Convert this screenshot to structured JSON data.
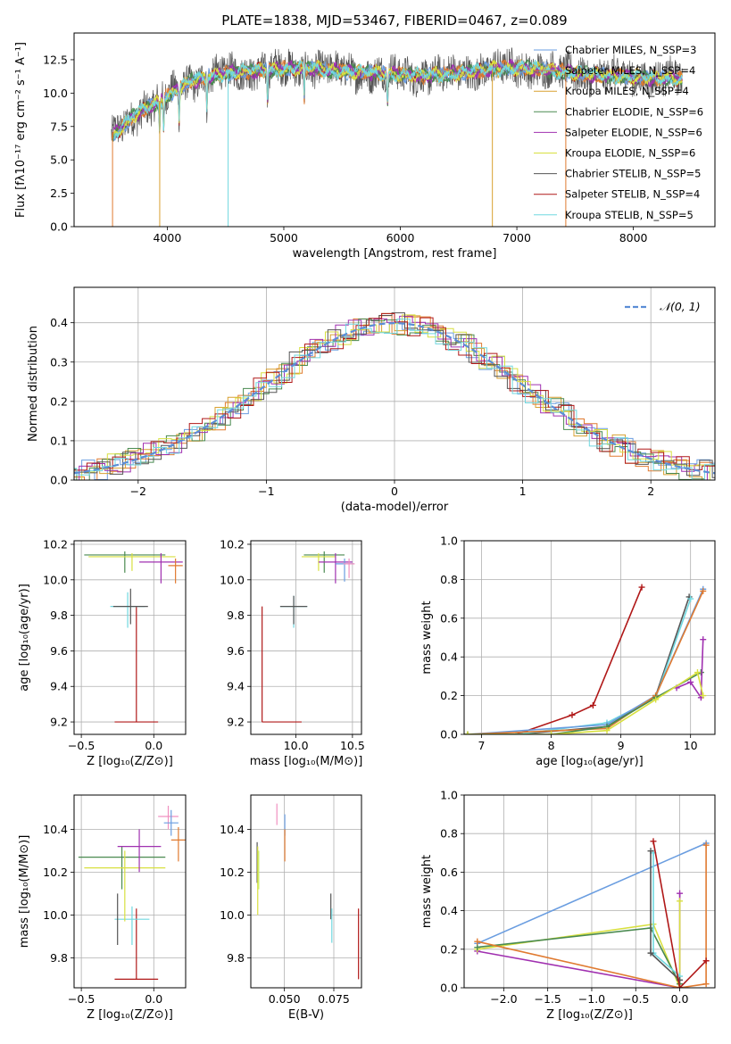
{
  "colors": {
    "chabrier_miles": "#6a9de0",
    "salpeter_miles": "#e07a30",
    "kroupa_miles": "#d8a030",
    "chabrier_elodie": "#4a8a50",
    "salpeter_elodie": "#a030b0",
    "kroupa_elodie": "#d8e040",
    "chabrier_stelib": "#555555",
    "salpeter_stelib": "#b01818",
    "kroupa_stelib": "#70d8e0",
    "grid": "#b0b0b0",
    "gaussian": "#5b8dd6",
    "pink": "#f090c0",
    "lime": "#c8f060"
  },
  "chart_data": [
    {
      "id": "spectrum",
      "type": "line",
      "title": "PLATE=1838, MJD=53467, FIBERID=0467, z=0.089",
      "xlabel": "wavelength [Angstrom, rest frame]",
      "ylabel": "Flux [fλ10⁻¹⁷ erg cm⁻² s⁻¹ A⁻¹]",
      "xlim": [
        3200,
        8700
      ],
      "ylim": [
        0,
        14.5
      ],
      "xticks": [
        "4000",
        "5000",
        "6000",
        "7000",
        "8000"
      ],
      "yticks": [
        "0.0",
        "2.5",
        "5.0",
        "7.5",
        "10.0",
        "12.5"
      ],
      "legend_position": "right",
      "legend": [
        "Chabrier MILES, N_SSP=3",
        "Salpeter MILES, N_SSP=4",
        "Kroupa MILES, N_SSP=4",
        "Chabrier ELODIE, N_SSP=6",
        "Salpeter ELODIE, N_SSP=6",
        "Kroupa ELODIE, N_SSP=6",
        "Chabrier STELIB, N_SSP=5",
        "Salpeter STELIB, N_SSP=4",
        "Kroupa STELIB, N_SSP=5"
      ],
      "continuum": {
        "x": [
          3500,
          3600,
          3700,
          3800,
          3900,
          4000,
          4100,
          4200,
          4400,
          4600,
          4800,
          5000,
          5200,
          5400,
          5600,
          5800,
          6000,
          6200,
          6400,
          6600,
          6800,
          7000,
          7200,
          7400,
          7600,
          7800,
          8000,
          8200,
          8400
        ],
        "y": [
          6.5,
          7.4,
          8.2,
          8.8,
          9.2,
          9.8,
          10.4,
          10.9,
          11.3,
          11.6,
          11.7,
          11.8,
          11.9,
          11.7,
          11.6,
          11.5,
          11.4,
          11.3,
          11.4,
          11.6,
          11.8,
          11.9,
          11.8,
          11.6,
          11.4,
          11.3,
          11.2,
          11.1,
          11.1
        ]
      }
    },
    {
      "id": "residuals",
      "type": "line",
      "xlabel": "(data-model)/error",
      "ylabel": "Normed distribution",
      "xlim": [
        -2.5,
        2.5
      ],
      "ylim": [
        0,
        0.49
      ],
      "xticks": [
        "−2",
        "−1",
        "0",
        "1",
        "2"
      ],
      "yticks": [
        "0.0",
        "0.1",
        "0.2",
        "0.3",
        "0.4"
      ],
      "legend": [
        "𝒩(0, 1)"
      ],
      "legend_position": "top-right",
      "series_name": "N(0,1)",
      "mu": 0,
      "sigma": 1
    },
    {
      "id": "age_vs_z",
      "type": "scatter",
      "xlabel": "Z [log₁₀(Z/Z⊙)]",
      "ylabel": "age  [log₁₀(age/yr)]",
      "xlim": [
        -0.55,
        0.22
      ],
      "ylim": [
        9.13,
        10.22
      ],
      "xticks": [
        "−0.5",
        "0.0"
      ],
      "yticks": [
        "9.2",
        "9.4",
        "9.6",
        "9.8",
        "10.0",
        "10.2"
      ],
      "points": [
        {
          "c": "salpeter_stelib",
          "x": -0.12,
          "xerr": 0.15,
          "y": 9.2,
          "yerr": [
            0,
            0.65
          ]
        },
        {
          "c": "kroupa_stelib",
          "x": -0.18,
          "xerr": 0.12,
          "y": 9.85,
          "yerr": [
            0.12,
            0.08
          ]
        },
        {
          "c": "chabrier_stelib",
          "x": -0.16,
          "xerr": 0.12,
          "y": 9.85,
          "yerr": [
            0.1,
            0.1
          ]
        },
        {
          "c": "chabrier_elodie",
          "x": -0.2,
          "xerr": 0.28,
          "y": 10.14,
          "yerr": [
            0.1,
            0.02
          ]
        },
        {
          "c": "kroupa_elodie",
          "x": -0.15,
          "xerr": 0.3,
          "y": 10.13,
          "yerr": [
            0.08,
            0.02
          ]
        },
        {
          "c": "salpeter_elodie",
          "x": 0.05,
          "xerr": 0.15,
          "y": 10.1,
          "yerr": [
            0.12,
            0.05
          ]
        },
        {
          "c": "salpeter_miles",
          "x": 0.15,
          "xerr": 0.05,
          "y": 10.08,
          "yerr": [
            0.1,
            0.04
          ]
        }
      ]
    },
    {
      "id": "age_vs_mass",
      "type": "scatter",
      "xlabel": "mass [log₁₀(M/M⊙)]",
      "xlim": [
        9.6,
        10.58
      ],
      "ylim": [
        9.13,
        10.22
      ],
      "xticks": [
        "10.0",
        "10.5"
      ],
      "yticks": [
        "9.2",
        "9.4",
        "9.6",
        "9.8",
        "10.0",
        "10.2"
      ],
      "points": [
        {
          "c": "salpeter_stelib",
          "x": 9.7,
          "xerr": 0.0,
          "y": 9.85,
          "yerr": [
            0.65,
            0
          ],
          "x2": [
            9.7,
            10.05
          ],
          "y2": 9.2
        },
        {
          "c": "kroupa_stelib",
          "x": 9.98,
          "xerr": 0.12,
          "y": 9.85,
          "yerr": [
            0.12,
            0.06
          ]
        },
        {
          "c": "chabrier_stelib",
          "x": 9.98,
          "xerr": 0.12,
          "y": 9.85,
          "yerr": [
            0.1,
            0.06
          ]
        },
        {
          "c": "chabrier_elodie",
          "x": 10.25,
          "xerr": 0.18,
          "y": 10.14,
          "yerr": [
            0.1,
            0.02
          ]
        },
        {
          "c": "kroupa_elodie",
          "x": 10.2,
          "xerr": 0.15,
          "y": 10.13,
          "yerr": [
            0.08,
            0.02
          ]
        },
        {
          "c": "salpeter_elodie",
          "x": 10.35,
          "xerr": 0.15,
          "y": 10.1,
          "yerr": [
            0.12,
            0.05
          ]
        },
        {
          "c": "chabrier_miles",
          "x": 10.43,
          "xerr": 0.08,
          "y": 10.09,
          "yerr": [
            0.1,
            0.03
          ]
        },
        {
          "c": "pink",
          "x": 10.47,
          "xerr": 0.05,
          "y": 10.09,
          "yerr": [
            0.08,
            0.03
          ]
        }
      ]
    },
    {
      "id": "weight_vs_age",
      "type": "line",
      "xlabel": "age  [log₁₀(age/yr)]",
      "ylabel": "mass weight",
      "xlim": [
        6.75,
        10.35
      ],
      "ylim": [
        0,
        1.0
      ],
      "xticks": [
        "7",
        "8",
        "9",
        "10"
      ],
      "yticks": [
        "0.0",
        "0.2",
        "0.4",
        "0.6",
        "0.8",
        "1.0"
      ],
      "series": [
        {
          "c": "salpeter_stelib",
          "x": [
            7.5,
            8.3,
            8.6,
            9.3
          ],
          "y": [
            0.0,
            0.1,
            0.15,
            0.76
          ]
        },
        {
          "c": "chabrier_stelib",
          "x": [
            6.8,
            7.5,
            8.8,
            9.5,
            9.98
          ],
          "y": [
            0.0,
            0.0,
            0.04,
            0.2,
            0.71
          ]
        },
        {
          "c": "kroupa_stelib",
          "x": [
            6.8,
            7.5,
            8.8,
            9.5,
            10.0
          ],
          "y": [
            0.0,
            0.0,
            0.06,
            0.19,
            0.7
          ]
        },
        {
          "c": "chabrier_miles",
          "x": [
            6.8,
            8.8,
            9.5,
            10.18
          ],
          "y": [
            0.0,
            0.05,
            0.2,
            0.75
          ]
        },
        {
          "c": "salpeter_miles",
          "x": [
            6.8,
            8.8,
            9.5,
            10.18
          ],
          "y": [
            0.0,
            0.03,
            0.2,
            0.74
          ]
        },
        {
          "c": "chabrier_elodie",
          "x": [
            6.8,
            8.0,
            8.8,
            9.5,
            10.15
          ],
          "y": [
            0.0,
            0.0,
            0.04,
            0.19,
            0.32
          ]
        },
        {
          "c": "salpeter_elodie",
          "x": [
            9.8,
            10.0,
            10.15,
            10.18
          ],
          "y": [
            0.24,
            0.27,
            0.19,
            0.49
          ]
        },
        {
          "c": "kroupa_elodie",
          "x": [
            6.8,
            8.0,
            8.8,
            9.5,
            10.1,
            10.18
          ],
          "y": [
            0.0,
            0.0,
            0.02,
            0.18,
            0.32,
            0.2
          ]
        }
      ]
    },
    {
      "id": "mass_vs_z",
      "type": "scatter",
      "xlabel": "Z [log₁₀(Z/Z⊙)]",
      "ylabel": "mass [log₁₀(M/M⊙)]",
      "xlim": [
        -0.55,
        0.22
      ],
      "ylim": [
        9.66,
        10.56
      ],
      "xticks": [
        "−0.5",
        "0.0"
      ],
      "yticks": [
        "9.8",
        "10.0",
        "10.2",
        "10.4"
      ],
      "points": [
        {
          "c": "salpeter_stelib",
          "x": -0.12,
          "xerr": 0.15,
          "y": 9.7,
          "yerr": [
            0,
            0.33
          ]
        },
        {
          "c": "kroupa_stelib",
          "x": -0.15,
          "xerr": 0.12,
          "y": 9.98,
          "yerr": [
            0.12,
            0.06
          ]
        },
        {
          "c": "chabrier_stelib",
          "x": -0.25,
          "xerr": 0.0,
          "y": 9.98,
          "yerr": [
            0.12,
            0.12
          ]
        },
        {
          "c": "chabrier_elodie",
          "x": -0.22,
          "xerr": 0.3,
          "y": 10.27,
          "yerr": [
            0.15,
            0.05
          ]
        },
        {
          "c": "kroupa_elodie",
          "x": -0.2,
          "xerr": 0.28,
          "y": 10.22,
          "yerr": [
            0.25,
            0.08
          ]
        },
        {
          "c": "salpeter_elodie",
          "x": -0.1,
          "xerr": 0.15,
          "y": 10.32,
          "yerr": [
            0.12,
            0.08
          ]
        },
        {
          "c": "pink",
          "x": 0.1,
          "xerr": 0.07,
          "y": 10.46,
          "yerr": [
            0.06,
            0.05
          ]
        },
        {
          "c": "chabrier_miles",
          "x": 0.12,
          "xerr": 0.05,
          "y": 10.43,
          "yerr": [
            0.06,
            0.06
          ]
        },
        {
          "c": "salpeter_miles",
          "x": 0.17,
          "xerr": 0.05,
          "y": 10.35,
          "yerr": [
            0.1,
            0.06
          ]
        }
      ]
    },
    {
      "id": "mass_vs_ebv",
      "type": "scatter",
      "xlabel": "E(B-V)",
      "xlim": [
        0.033,
        0.089
      ],
      "ylim": [
        9.66,
        10.56
      ],
      "xticks": [
        "0.050",
        "0.075"
      ],
      "yticks": [
        "9.8",
        "10.0",
        "10.2",
        "10.4"
      ],
      "points": [
        {
          "c": "chabrier_stelib",
          "x": 0.0362,
          "y": 10.25,
          "yerr": [
            0.1,
            0.09
          ]
        },
        {
          "c": "kroupa_elodie",
          "x": 0.0365,
          "y": 10.1,
          "yerr": [
            0.1,
            0.22
          ]
        },
        {
          "c": "lime",
          "x": 0.037,
          "y": 10.2,
          "yerr": [
            0.08,
            0.1
          ]
        },
        {
          "c": "pink",
          "x": 0.0462,
          "y": 10.47,
          "yerr": [
            0.05,
            0.05
          ]
        },
        {
          "c": "chabrier_miles",
          "x": 0.0502,
          "y": 10.42,
          "yerr": [
            0.05,
            0.05
          ]
        },
        {
          "c": "salpeter_miles",
          "x": 0.0502,
          "y": 10.32,
          "yerr": [
            0.07,
            0.08
          ]
        },
        {
          "c": "chabrier_stelib",
          "x": 0.0735,
          "y": 10.05,
          "yerr": [
            0.07,
            0.05
          ]
        },
        {
          "c": "kroupa_stelib",
          "x": 0.074,
          "y": 9.95,
          "yerr": [
            0.08,
            0.08
          ]
        },
        {
          "c": "salpeter_stelib",
          "x": 0.0875,
          "y": 9.85,
          "yerr": [
            0.15,
            0.18
          ]
        }
      ]
    },
    {
      "id": "weight_vs_z",
      "type": "line",
      "xlabel": "Z [log₁₀(Z/Z⊙)]",
      "ylabel": "mass weight",
      "xlim": [
        -2.45,
        0.4
      ],
      "ylim": [
        0,
        1.0
      ],
      "xticks": [
        "−2.0",
        "−1.5",
        "−1.0",
        "−0.5",
        "0.0"
      ],
      "yticks": [
        "0.0",
        "0.2",
        "0.4",
        "0.6",
        "0.8",
        "1.0"
      ],
      "series": [
        {
          "c": "chabrier_miles",
          "x": [
            -2.3,
            0.3
          ],
          "y": [
            0.23,
            0.75
          ]
        },
        {
          "c": "salpeter_elodie",
          "x": [
            -2.3,
            0.0,
            0.0
          ],
          "y": [
            0.19,
            0.0,
            0.49
          ]
        },
        {
          "c": "kroupa_elodie",
          "x": [
            -2.3,
            -0.3,
            0.0,
            0.0
          ],
          "y": [
            0.2,
            0.33,
            0.0,
            0.45
          ]
        },
        {
          "c": "chabrier_elodie",
          "x": [
            -2.3,
            -0.33,
            0.0
          ],
          "y": [
            0.21,
            0.31,
            0.02
          ]
        },
        {
          "c": "salpeter_miles",
          "x": [
            -2.3,
            0.0,
            0.3,
            0.3
          ],
          "y": [
            0.24,
            0.0,
            0.02,
            0.74
          ]
        },
        {
          "c": "kroupa_stelib",
          "x": [
            -0.3,
            -0.3,
            0.0
          ],
          "y": [
            0.7,
            0.18,
            0.06
          ]
        },
        {
          "c": "chabrier_stelib",
          "x": [
            -0.33,
            -0.33,
            0.0
          ],
          "y": [
            0.71,
            0.18,
            0.04
          ]
        },
        {
          "c": "salpeter_stelib",
          "x": [
            -0.3,
            0.0,
            0.3
          ],
          "y": [
            0.76,
            0.0,
            0.14
          ]
        }
      ]
    }
  ]
}
